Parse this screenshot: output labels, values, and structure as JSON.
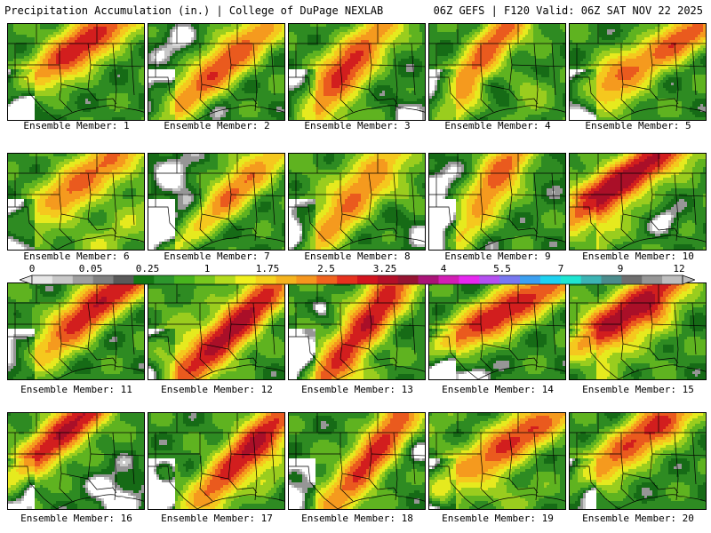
{
  "header": {
    "title": "Precipitation Accumulation (in.) | College of DuPage NEXLAB",
    "valid": "06Z GEFS | F120 Valid: 06Z SAT NOV 22 2025"
  },
  "panels": [
    {
      "label": "Ensemble Member: 1"
    },
    {
      "label": "Ensemble Member: 2"
    },
    {
      "label": "Ensemble Member: 3"
    },
    {
      "label": "Ensemble Member: 4"
    },
    {
      "label": "Ensemble Member: 5"
    },
    {
      "label": "Ensemble Member: 6"
    },
    {
      "label": "Ensemble Member: 7"
    },
    {
      "label": "Ensemble Member: 8"
    },
    {
      "label": "Ensemble Member: 9"
    },
    {
      "label": "Ensemble Member: 10"
    },
    {
      "label": "Ensemble Member: 11"
    },
    {
      "label": "Ensemble Member: 12"
    },
    {
      "label": "Ensemble Member: 13"
    },
    {
      "label": "Ensemble Member: 14"
    },
    {
      "label": "Ensemble Member: 15"
    },
    {
      "label": "Ensemble Member: 16"
    },
    {
      "label": "Ensemble Member: 17"
    },
    {
      "label": "Ensemble Member: 18"
    },
    {
      "label": "Ensemble Member: 19"
    },
    {
      "label": "Ensemble Member: 20"
    }
  ],
  "colorbar": {
    "tick_labels": [
      "0",
      "0.05",
      "0.25",
      "1",
      "1.75",
      "2.5",
      "3.25",
      "4",
      "5.5",
      "7",
      "9",
      "12"
    ],
    "colors": [
      "#e6e6e6",
      "#c8c8c8",
      "#a0a0a0",
      "#808080",
      "#5a5a5a",
      "#147814",
      "#2d962d",
      "#48b41e",
      "#78c81e",
      "#b4dc1e",
      "#f0f01e",
      "#f5d21e",
      "#f5b41e",
      "#f5961e",
      "#f0641e",
      "#e6321e",
      "#d2141e",
      "#b40f28",
      "#961432",
      "#aa1478",
      "#d21eb4",
      "#e628f0",
      "#b450f0",
      "#7878f0",
      "#3ca0f0",
      "#1ed2f0",
      "#1ee6d2",
      "#3cb4b4",
      "#4b8c8c",
      "#6e6e6e",
      "#969696",
      "#bebebe"
    ]
  }
}
